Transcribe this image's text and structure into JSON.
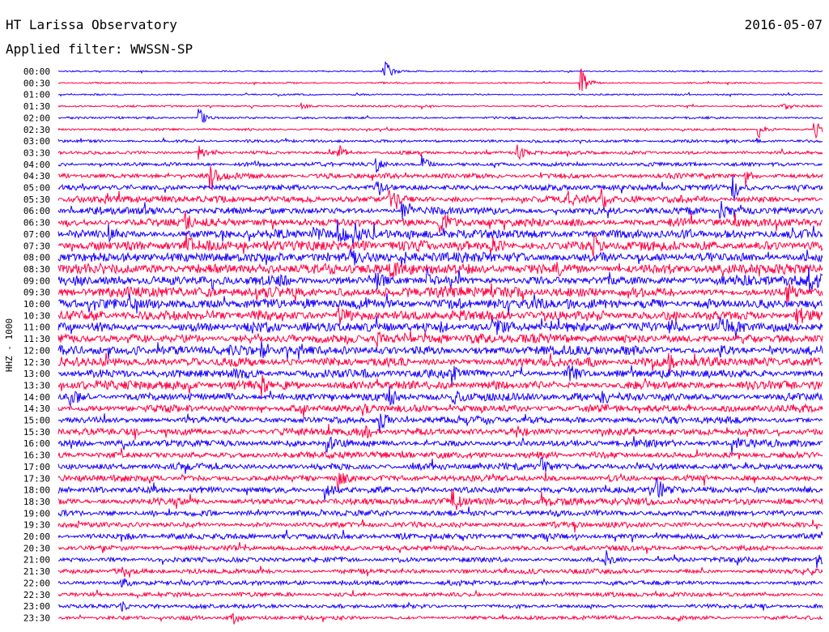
{
  "header": {
    "title": "HT Larissa Observatory",
    "date": "2016-05-07",
    "filter_label": "Applied filter: WWSSN-SP"
  },
  "chart_data": {
    "type": "line",
    "title": "HT Larissa Observatory",
    "ylabel": "HHZ - 1000",
    "xlabel": "",
    "grid": false,
    "legend": "none",
    "trace_colors": [
      "#1a00ff",
      "#ff0044"
    ],
    "row_minutes": 30,
    "rows": [
      "00:00",
      "00:30",
      "01:00",
      "01:30",
      "02:00",
      "02:30",
      "03:00",
      "03:30",
      "04:00",
      "04:30",
      "05:00",
      "05:30",
      "06:00",
      "06:30",
      "07:00",
      "07:30",
      "08:00",
      "08:30",
      "09:00",
      "09:30",
      "10:00",
      "10:30",
      "11:00",
      "11:30",
      "12:00",
      "12:30",
      "13:00",
      "13:30",
      "14:00",
      "14:30",
      "15:00",
      "15:30",
      "16:00",
      "16:30",
      "17:00",
      "17:30",
      "18:00",
      "18:30",
      "19:00",
      "19:30",
      "20:00",
      "20:30",
      "21:00",
      "21:30",
      "22:00",
      "22:30",
      "23:00",
      "23:30"
    ],
    "noise_amplitude": [
      0.7,
      0.8,
      0.8,
      0.9,
      1.1,
      1.2,
      1.4,
      1.6,
      2.0,
      2.4,
      2.8,
      3.2,
      3.6,
      4.0,
      4.6,
      5.0,
      5.0,
      5.2,
      5.0,
      5.0,
      4.8,
      4.8,
      4.8,
      4.7,
      4.6,
      4.5,
      4.3,
      4.2,
      4.0,
      3.8,
      3.6,
      3.5,
      3.4,
      3.3,
      3.2,
      3.2,
      3.3,
      3.2,
      3.0,
      2.8,
      2.6,
      2.5,
      2.4,
      2.3,
      2.2,
      2.1,
      2.0,
      2.0
    ],
    "events": [
      {
        "row": 0,
        "minute": 12.8,
        "amplitude": 18
      },
      {
        "row": 1,
        "minute": 20.5,
        "amplitude": 20
      },
      {
        "row": 3,
        "minute": 9.5,
        "amplitude": 6
      },
      {
        "row": 3,
        "minute": 28.5,
        "amplitude": 6
      },
      {
        "row": 4,
        "minute": 5.5,
        "amplitude": 14
      },
      {
        "row": 5,
        "minute": 27.5,
        "amplitude": 10
      },
      {
        "row": 5,
        "minute": 29.7,
        "amplitude": 12
      },
      {
        "row": 7,
        "minute": 5.5,
        "amplitude": 8
      },
      {
        "row": 7,
        "minute": 11.0,
        "amplitude": 9
      },
      {
        "row": 7,
        "minute": 18.0,
        "amplitude": 10
      },
      {
        "row": 8,
        "minute": 12.5,
        "amplitude": 8
      },
      {
        "row": 8,
        "minute": 14.3,
        "amplitude": 10
      },
      {
        "row": 9,
        "minute": 6.0,
        "amplitude": 14
      },
      {
        "row": 9,
        "minute": 27.0,
        "amplitude": 11
      },
      {
        "row": 10,
        "minute": 12.5,
        "amplitude": 12
      },
      {
        "row": 10,
        "minute": 26.5,
        "amplitude": 15
      },
      {
        "row": 11,
        "minute": 13.0,
        "amplitude": 10
      },
      {
        "row": 11,
        "minute": 20.0,
        "amplitude": 9
      },
      {
        "row": 11,
        "minute": 21.3,
        "amplitude": 16
      },
      {
        "row": 12,
        "minute": 13.5,
        "amplitude": 10
      },
      {
        "row": 12,
        "minute": 26.0,
        "amplitude": 11
      },
      {
        "row": 13,
        "minute": 5.0,
        "amplitude": 9
      },
      {
        "row": 13,
        "minute": 15.0,
        "amplitude": 10
      },
      {
        "row": 14,
        "minute": 2.0,
        "amplitude": 11
      },
      {
        "row": 14,
        "minute": 10.0,
        "amplitude": 12
      },
      {
        "row": 14,
        "minute": 11.0,
        "amplitude": 14
      },
      {
        "row": 14,
        "minute": 11.6,
        "amplitude": 12
      },
      {
        "row": 15,
        "minute": 5.0,
        "amplitude": 15
      },
      {
        "row": 15,
        "minute": 17.0,
        "amplitude": 12
      },
      {
        "row": 15,
        "minute": 21.0,
        "amplitude": 12
      },
      {
        "row": 16,
        "minute": 11.5,
        "amplitude": 10
      },
      {
        "row": 16,
        "minute": 13.5,
        "amplitude": 9
      },
      {
        "row": 17,
        "minute": 13.0,
        "amplitude": 8
      },
      {
        "row": 17,
        "minute": 19.5,
        "amplitude": 9
      },
      {
        "row": 18,
        "minute": 12.5,
        "amplitude": 10
      },
      {
        "row": 18,
        "minute": 14.5,
        "amplitude": 11
      },
      {
        "row": 18,
        "minute": 29.5,
        "amplitude": 10
      },
      {
        "row": 19,
        "minute": 28.6,
        "amplitude": 12
      },
      {
        "row": 20,
        "minute": 20.0,
        "amplitude": 9
      },
      {
        "row": 21,
        "minute": 11.0,
        "amplitude": 10
      },
      {
        "row": 21,
        "minute": 29.0,
        "amplitude": 10
      },
      {
        "row": 22,
        "minute": 15.0,
        "amplitude": 11
      },
      {
        "row": 22,
        "minute": 17.0,
        "amplitude": 14
      },
      {
        "row": 22,
        "minute": 26.0,
        "amplitude": 12
      },
      {
        "row": 22,
        "minute": 24.0,
        "amplitude": 13
      },
      {
        "row": 23,
        "minute": 12.5,
        "amplitude": 9
      },
      {
        "row": 24,
        "minute": 8.0,
        "amplitude": 10
      },
      {
        "row": 24,
        "minute": 26.0,
        "amplitude": 9
      },
      {
        "row": 25,
        "minute": 24.0,
        "amplitude": 9
      },
      {
        "row": 26,
        "minute": 15.5,
        "amplitude": 11
      },
      {
        "row": 26,
        "minute": 20.0,
        "amplitude": 10
      },
      {
        "row": 27,
        "minute": 8.0,
        "amplitude": 11
      },
      {
        "row": 28,
        "minute": 0.5,
        "amplitude": 10
      },
      {
        "row": 28,
        "minute": 13.0,
        "amplitude": 12
      },
      {
        "row": 28,
        "minute": 15.5,
        "amplitude": 12
      },
      {
        "row": 28,
        "minute": 21.3,
        "amplitude": 11
      },
      {
        "row": 29,
        "minute": 12.0,
        "amplitude": 8
      },
      {
        "row": 30,
        "minute": 12.6,
        "amplitude": 12
      },
      {
        "row": 31,
        "minute": 12.0,
        "amplitude": 9
      },
      {
        "row": 31,
        "minute": 18.0,
        "amplitude": 8
      },
      {
        "row": 32,
        "minute": 10.5,
        "amplitude": 10
      },
      {
        "row": 32,
        "minute": 26.5,
        "amplitude": 10
      },
      {
        "row": 34,
        "minute": 19.0,
        "amplitude": 9
      },
      {
        "row": 35,
        "minute": 11.0,
        "amplitude": 9
      },
      {
        "row": 36,
        "minute": 10.5,
        "amplitude": 11
      },
      {
        "row": 36,
        "minute": 23.5,
        "amplitude": 13
      },
      {
        "row": 37,
        "minute": 15.5,
        "amplitude": 14
      },
      {
        "row": 37,
        "minute": 19.0,
        "amplitude": 10
      },
      {
        "row": 40,
        "minute": 2.5,
        "amplitude": 6
      },
      {
        "row": 42,
        "minute": 21.5,
        "amplitude": 10
      },
      {
        "row": 42,
        "minute": 29.8,
        "amplitude": 10
      },
      {
        "row": 44,
        "minute": 2.5,
        "amplitude": 7
      },
      {
        "row": 46,
        "minute": 2.5,
        "amplitude": 6
      },
      {
        "row": 47,
        "minute": 6.8,
        "amplitude": 12
      }
    ]
  }
}
